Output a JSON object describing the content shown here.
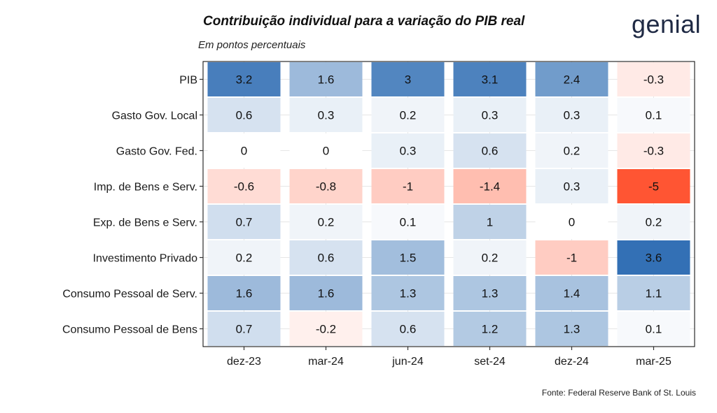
{
  "header": {
    "title": "Contribuição individual para a variação do PIB real",
    "subtitle": "Em pontos percentuais",
    "brand": "genial"
  },
  "footer": {
    "source": "Fonte: Federal Reserve Bank of St. Louis"
  },
  "colors": {
    "negative": "#ff5533",
    "neutral": "#ffffff",
    "positive": "#2f6db3",
    "border": "#000000",
    "text": "#111111"
  },
  "chart_data": {
    "type": "heatmap",
    "title": "Contribuição individual para a variação do PIB real",
    "subtitle": "Em pontos percentuais",
    "xlabel": "",
    "ylabel": "",
    "x": [
      "dez-23",
      "mar-24",
      "jun-24",
      "set-24",
      "dez-24",
      "mar-25"
    ],
    "y": [
      "PIB",
      "Gasto Gov. Local",
      "Gasto Gov. Fed.",
      "Imp. de Bens e Serv.",
      "Exp. de Bens e Serv.",
      "Investimento Privado",
      "Consumo Pessoal de Serv.",
      "Consumo Pessoal de Bens"
    ],
    "values": [
      [
        3.2,
        1.6,
        3,
        3.1,
        2.4,
        -0.3
      ],
      [
        0.6,
        0.3,
        0.2,
        0.3,
        0.3,
        0.1
      ],
      [
        0,
        0,
        0.3,
        0.6,
        0.2,
        -0.3
      ],
      [
        -0.6,
        -0.8,
        -1,
        -1.4,
        0.3,
        -5
      ],
      [
        0.7,
        0.2,
        0.1,
        1,
        0,
        0.2
      ],
      [
        0.2,
        0.6,
        1.5,
        0.2,
        -1,
        3.6
      ],
      [
        1.6,
        1.6,
        1.3,
        1.3,
        1.4,
        1.1
      ],
      [
        0.7,
        -0.2,
        0.6,
        1.2,
        1.3,
        0.1
      ]
    ],
    "grid": true,
    "legend": "none"
  }
}
